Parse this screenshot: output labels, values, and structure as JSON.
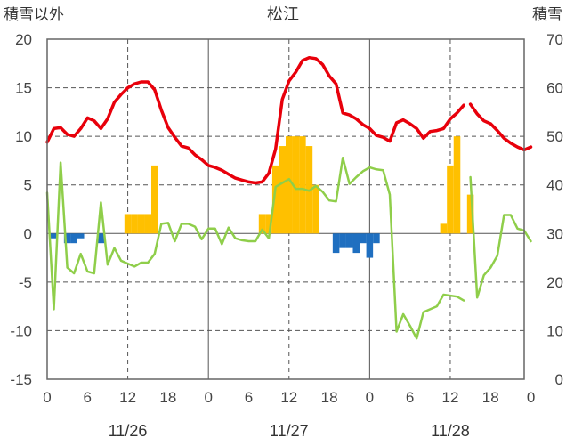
{
  "chart_data": {
    "type": "bar+line",
    "title": "松江",
    "left_axis_label": "積雪以外",
    "right_axis_label": "積雪",
    "left_ylim": [
      -15,
      20
    ],
    "left_yticks": [
      -15,
      -10,
      -5,
      0,
      5,
      10,
      15,
      20
    ],
    "right_ylim": [
      0,
      70
    ],
    "right_yticks": [
      0,
      10,
      20,
      30,
      40,
      50,
      60,
      70
    ],
    "x_range": [
      0,
      71
    ],
    "x_tick_hours": [
      0,
      6,
      12,
      18,
      24,
      30,
      36,
      42,
      48,
      54,
      60,
      66,
      72
    ],
    "x_tick_labels": [
      "0",
      "6",
      "12",
      "18",
      "0",
      "6",
      "12",
      "18",
      "0",
      "6",
      "12",
      "18",
      "0"
    ],
    "date_labels": [
      {
        "label": "11/26",
        "hour": 12
      },
      {
        "label": "11/27",
        "hour": 36
      },
      {
        "label": "11/28",
        "hour": 60
      }
    ],
    "grid": {
      "dashed_at_hours": [
        12,
        36,
        60
      ],
      "solid_at_hours": [
        24,
        48
      ],
      "horizontal": true
    },
    "colors": {
      "red_line": "#e8000b",
      "green_line": "#8fce4a",
      "positive_bar": "#ffc000",
      "negative_bar": "#1f6fc0"
    },
    "bars": [
      {
        "hour": 1,
        "value": -0.5
      },
      {
        "hour": 3,
        "value": -1.0
      },
      {
        "hour": 4,
        "value": -1.0
      },
      {
        "hour": 5,
        "value": -0.5
      },
      {
        "hour": 8,
        "value": -1.0
      },
      {
        "hour": 12,
        "value": 2
      },
      {
        "hour": 13,
        "value": 2
      },
      {
        "hour": 14,
        "value": 2
      },
      {
        "hour": 15,
        "value": 2
      },
      {
        "hour": 16,
        "value": 7
      },
      {
        "hour": 32,
        "value": 2
      },
      {
        "hour": 33,
        "value": 2
      },
      {
        "hour": 34,
        "value": 7
      },
      {
        "hour": 35,
        "value": 9
      },
      {
        "hour": 36,
        "value": 10
      },
      {
        "hour": 37,
        "value": 10
      },
      {
        "hour": 38,
        "value": 10
      },
      {
        "hour": 39,
        "value": 9
      },
      {
        "hour": 40,
        "value": 5
      },
      {
        "hour": 43,
        "value": -2
      },
      {
        "hour": 44,
        "value": -1.5
      },
      {
        "hour": 45,
        "value": -1.5
      },
      {
        "hour": 46,
        "value": -2
      },
      {
        "hour": 47,
        "value": -1.0
      },
      {
        "hour": 48,
        "value": -2.5
      },
      {
        "hour": 49,
        "value": -1.0
      },
      {
        "hour": 59,
        "value": 1
      },
      {
        "hour": 60,
        "value": 7
      },
      {
        "hour": 61,
        "value": 10
      },
      {
        "hour": 63,
        "value": 4
      }
    ],
    "series": [
      {
        "axis": "left",
        "points": [
          [
            0,
            9.4
          ],
          [
            1,
            10.8
          ],
          [
            2,
            10.9
          ],
          [
            3,
            10.2
          ],
          [
            4,
            10.0
          ],
          [
            5,
            10.8
          ],
          [
            6,
            11.9
          ],
          [
            7,
            11.6
          ],
          [
            8,
            10.8
          ],
          [
            9,
            11.8
          ],
          [
            10,
            13.5
          ],
          [
            11,
            14.3
          ],
          [
            12,
            15.0
          ],
          [
            13,
            15.4
          ],
          [
            14,
            15.6
          ],
          [
            15,
            15.6
          ],
          [
            16,
            14.8
          ],
          [
            17,
            12.7
          ],
          [
            18,
            10.9
          ],
          [
            19,
            9.9
          ],
          [
            20,
            9.0
          ],
          [
            21,
            8.8
          ],
          [
            22,
            8.1
          ],
          [
            23,
            7.6
          ],
          [
            24,
            7.0
          ],
          [
            25,
            6.8
          ],
          [
            26,
            6.5
          ],
          [
            27,
            6.1
          ],
          [
            28,
            5.7
          ],
          [
            29,
            5.5
          ],
          [
            30,
            5.3
          ],
          [
            31,
            5.2
          ],
          [
            32,
            5.3
          ],
          [
            33,
            6.2
          ],
          [
            34,
            8.7
          ],
          [
            35,
            13.8
          ],
          [
            36,
            15.7
          ],
          [
            37,
            16.6
          ],
          [
            38,
            17.8
          ],
          [
            39,
            18.1
          ],
          [
            40,
            18.0
          ],
          [
            41,
            17.4
          ],
          [
            42,
            16.2
          ],
          [
            43,
            15.4
          ],
          [
            44,
            12.4
          ],
          [
            45,
            12.2
          ],
          [
            46,
            11.8
          ],
          [
            47,
            11.2
          ],
          [
            48,
            10.8
          ],
          [
            49,
            10.1
          ],
          [
            50,
            9.9
          ],
          [
            51,
            9.5
          ],
          [
            52,
            11.4
          ],
          [
            53,
            11.7
          ],
          [
            54,
            11.3
          ],
          [
            55,
            10.8
          ],
          [
            56,
            9.8
          ],
          [
            57,
            10.5
          ],
          [
            58,
            10.6
          ],
          [
            59,
            10.8
          ],
          [
            60,
            11.8
          ],
          [
            61,
            12.4
          ],
          [
            62,
            13.2
          ]
        ]
      },
      {
        "axis": "left",
        "points": [
          [
            63,
            13.3
          ],
          [
            64,
            12.3
          ],
          [
            65,
            11.6
          ],
          [
            66,
            11.3
          ],
          [
            67,
            10.6
          ],
          [
            68,
            9.8
          ],
          [
            69,
            9.3
          ],
          [
            70,
            8.9
          ],
          [
            71,
            8.6
          ],
          [
            72,
            8.9
          ]
        ]
      },
      {
        "axis": "left",
        "points": [
          [
            0,
            4.2
          ],
          [
            1,
            -7.8
          ],
          [
            2,
            7.3
          ],
          [
            3,
            -3.5
          ],
          [
            4,
            -4.1
          ],
          [
            5,
            -2.1
          ],
          [
            6,
            -3.9
          ],
          [
            7,
            -4.1
          ],
          [
            8,
            3.2
          ],
          [
            9,
            -3.2
          ],
          [
            10,
            -1.5
          ],
          [
            11,
            -2.8
          ],
          [
            12,
            -3.1
          ],
          [
            13,
            -3.4
          ],
          [
            14,
            -3.0
          ],
          [
            15,
            -3.0
          ],
          [
            16,
            -2.1
          ],
          [
            17,
            1.0
          ],
          [
            18,
            1.1
          ],
          [
            19,
            -0.8
          ],
          [
            20,
            1.0
          ],
          [
            21,
            1.0
          ],
          [
            22,
            0.7
          ],
          [
            23,
            -0.6
          ],
          [
            24,
            0.5
          ],
          [
            25,
            0.5
          ],
          [
            26,
            -1.1
          ],
          [
            27,
            0.6
          ],
          [
            28,
            -0.5
          ],
          [
            29,
            -0.7
          ],
          [
            30,
            -0.8
          ],
          [
            31,
            -0.8
          ],
          [
            32,
            0.4
          ],
          [
            33,
            -0.5
          ],
          [
            34,
            4.8
          ],
          [
            35,
            5.2
          ],
          [
            36,
            5.6
          ],
          [
            37,
            4.6
          ],
          [
            38,
            4.6
          ],
          [
            39,
            4.4
          ],
          [
            40,
            4.9
          ],
          [
            41,
            4.3
          ],
          [
            42,
            3.4
          ],
          [
            43,
            3.3
          ],
          [
            44,
            7.8
          ],
          [
            45,
            5.1
          ],
          [
            46,
            5.8
          ],
          [
            47,
            6.4
          ],
          [
            48,
            6.8
          ],
          [
            49,
            6.6
          ],
          [
            50,
            6.5
          ],
          [
            51,
            4.0
          ],
          [
            52,
            -10.1
          ],
          [
            53,
            -8.3
          ],
          [
            54,
            -9.5
          ],
          [
            55,
            -10.8
          ],
          [
            56,
            -8.1
          ],
          [
            57,
            -7.8
          ],
          [
            58,
            -7.5
          ],
          [
            59,
            -6.3
          ],
          [
            60,
            -6.4
          ],
          [
            61,
            -6.5
          ],
          [
            62,
            -6.9
          ]
        ]
      },
      {
        "axis": "left",
        "points": [
          [
            63,
            5.8
          ],
          [
            64,
            -6.6
          ],
          [
            65,
            -4.3
          ],
          [
            66,
            -3.5
          ],
          [
            67,
            -2.3
          ],
          [
            68,
            1.9
          ],
          [
            69,
            1.9
          ],
          [
            70,
            0.5
          ],
          [
            71,
            0.3
          ],
          [
            72,
            -0.8
          ]
        ]
      }
    ]
  }
}
